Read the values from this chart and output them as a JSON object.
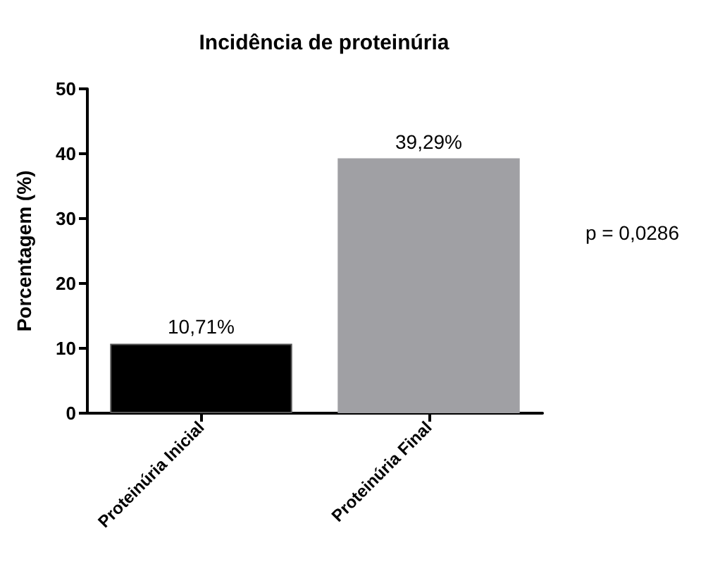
{
  "chart_data": {
    "type": "bar",
    "title": "Incidência de proteinúria",
    "ylabel": "Porcentagem (%)",
    "categories": [
      "Proteinúria Inicial",
      "Proteinúria Final"
    ],
    "values": [
      10.71,
      39.29
    ],
    "colors": [
      "#000000",
      "#a0a0a4"
    ],
    "value_labels": [
      "10,71%",
      "39,29%"
    ],
    "ylim": [
      0,
      50
    ],
    "yticks": [
      0,
      10,
      20,
      30,
      40,
      50
    ],
    "grid": false,
    "annotations": [
      "p = 0,0286"
    ]
  }
}
